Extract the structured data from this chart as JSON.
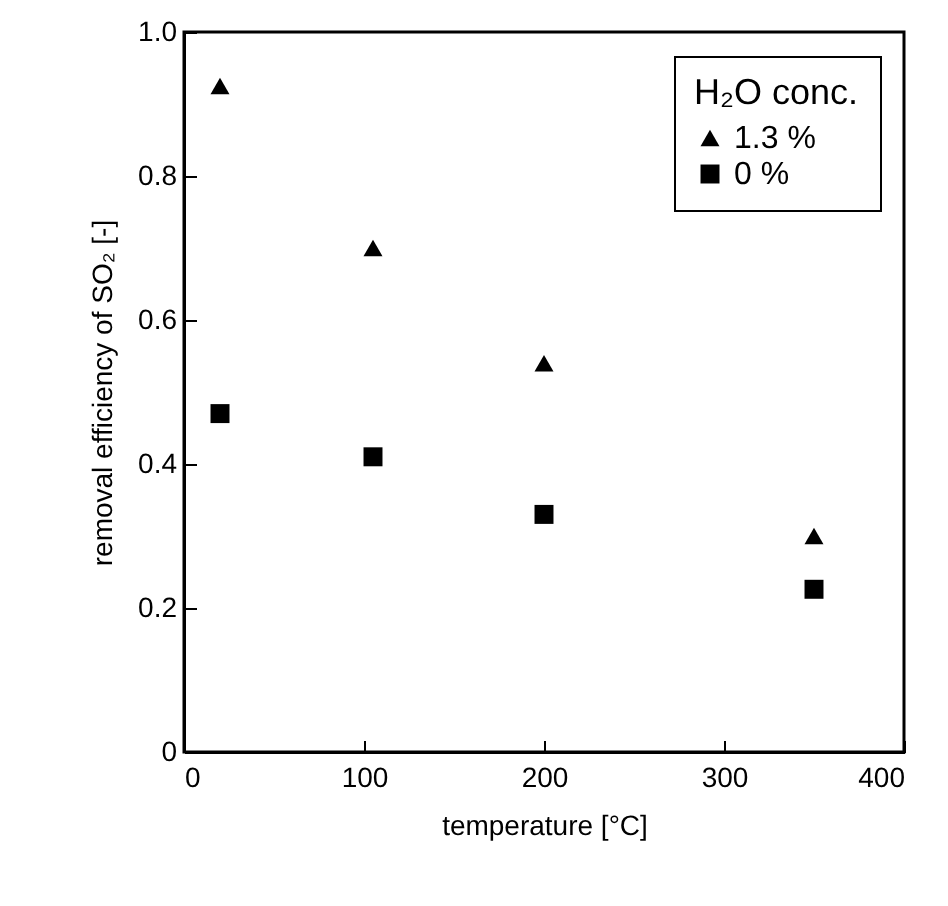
{
  "chart_data": {
    "type": "scatter",
    "xlabel": "temperature [°C]",
    "ylabel": "removal efficiency of SO₂ [-]",
    "legend_title": "H₂O conc.",
    "legend": "top right",
    "grid": false,
    "x": [
      20,
      105,
      200,
      350
    ],
    "series": [
      {
        "name": "1.3 %",
        "color": "#000000",
        "marker": "triangle",
        "values": [
          0.925,
          0.7,
          0.54,
          0.3
        ]
      },
      {
        "name": "0 %",
        "color": "#000000",
        "marker": "square",
        "values": [
          0.47,
          0.41,
          0.33,
          0.226
        ]
      }
    ],
    "xlim": [
      0,
      400
    ],
    "xticks": [
      0,
      100,
      200,
      300,
      400
    ],
    "ylim": [
      0,
      1
    ],
    "yticks": [
      0,
      0.2,
      0.4,
      0.6,
      0.8,
      {
        "value": 1,
        "label": "1.0"
      }
    ]
  }
}
